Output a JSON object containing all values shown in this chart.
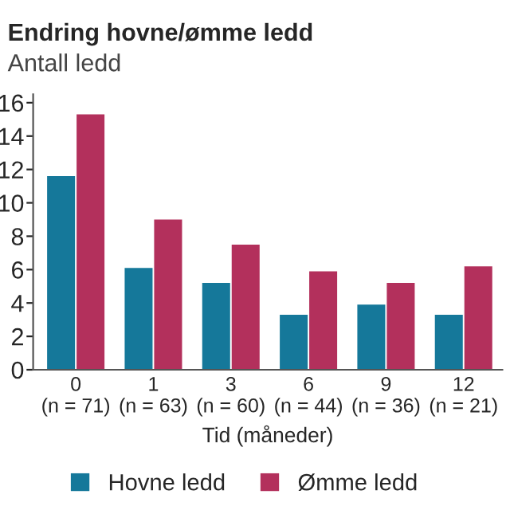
{
  "chart_data": {
    "type": "bar",
    "title": "Endring hovne/ømme ledd",
    "ylabel": "Antall ledd",
    "xlabel": "Tid (måneder)",
    "categories": [
      "0\n(n = 71)",
      "1\n(n = 63)",
      "3\n(n = 60)",
      "6\n(n = 44)",
      "9\n(n = 36)",
      "12\n(n = 21)"
    ],
    "series": [
      {
        "name": "Hovne ledd",
        "color": "#15789a",
        "values": [
          11.6,
          6.1,
          5.2,
          3.3,
          3.9,
          3.3
        ]
      },
      {
        "name": "Ømme ledd",
        "color": "#b3305c",
        "values": [
          15.3,
          9.0,
          7.5,
          5.9,
          5.2,
          6.2
        ]
      }
    ],
    "ylim": [
      0,
      16.5
    ],
    "yticks": [
      0,
      2,
      4,
      6,
      8,
      10,
      12,
      14,
      16
    ],
    "grid": false,
    "legend": "bottom"
  }
}
